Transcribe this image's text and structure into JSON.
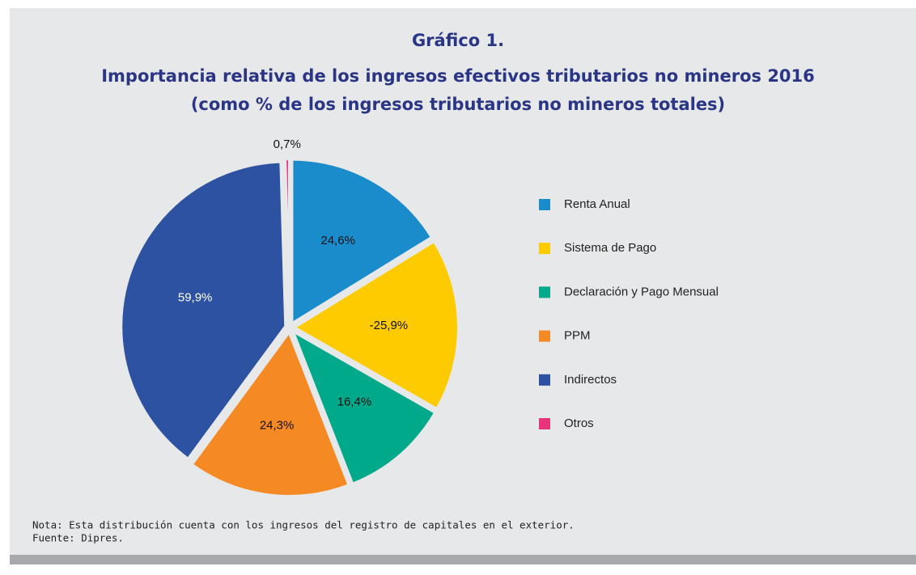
{
  "chart_data": {
    "type": "pie",
    "title": [
      "Gráfico 1.",
      "Importancia relativa de los ingresos efectivos tributarios no mineros 2016",
      "(como % de los ingresos tributarios no mineros totales)"
    ],
    "categories": [
      "Renta Anual",
      "Sistema de Pago",
      "Declaración y Pago Mensual",
      "PPM",
      "Indirectos",
      "Otros"
    ],
    "values": [
      24.6,
      -25.9,
      16.4,
      24.3,
      59.9,
      0.7
    ],
    "value_labels": [
      "24,6%",
      "-25,9%",
      "16,4%",
      "24,3%",
      "59,9%",
      "0,7%"
    ],
    "colors": [
      "#1a8ccc",
      "#fdcb00",
      "#00a98a",
      "#f58a24",
      "#2d52a1",
      "#e8347a"
    ],
    "legend": "right",
    "notes": [
      "Nota: Esta distribución cuenta con los ingresos del registro de capitales en el exterior.",
      "Fuente: Dipres."
    ]
  }
}
